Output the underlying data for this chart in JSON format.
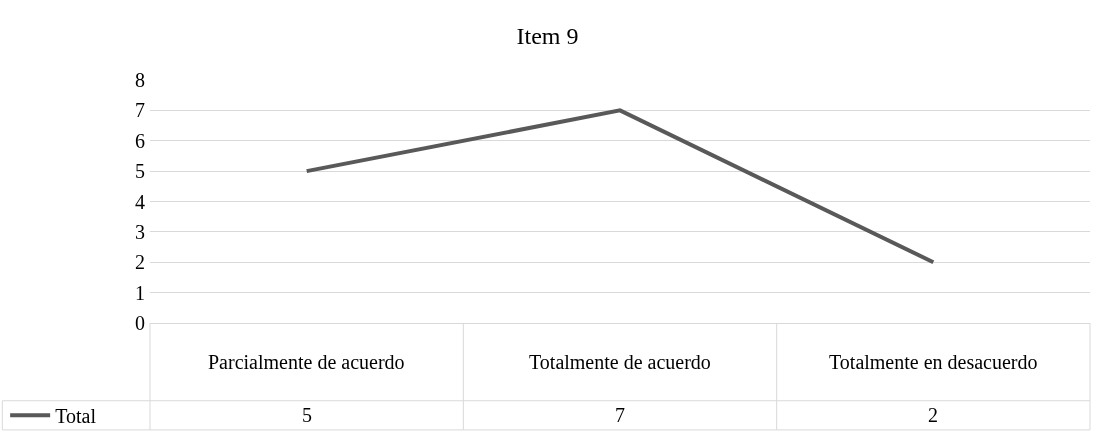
{
  "chart_data": {
    "type": "line",
    "title": "Item 9",
    "categories": [
      "Parcialmente de acuerdo",
      "Totalmente de acuerdo",
      "Totalmente en desacuerdo"
    ],
    "series": [
      {
        "name": "Total",
        "color": "#595959",
        "values": [
          5,
          7,
          2
        ]
      }
    ],
    "ylim": [
      0,
      8
    ],
    "yticks": [
      0,
      1,
      2,
      3,
      4,
      5,
      6,
      7,
      8
    ],
    "grid": "y",
    "legend": "bottom left",
    "data_labels": true
  }
}
